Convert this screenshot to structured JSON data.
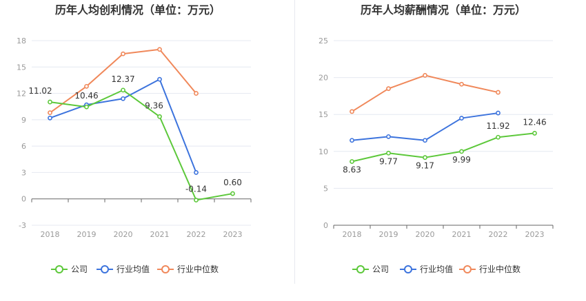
{
  "colors": {
    "company": "#5cc83a",
    "industry_avg": "#3c73dd",
    "industry_median": "#f0885a",
    "grid": "#e4e8f1",
    "axis": "#666666",
    "tick_text": "#999999",
    "title": "#333333"
  },
  "legend": {
    "company": "公司",
    "industry_avg": "行业均值",
    "industry_median": "行业中位数"
  },
  "chart_data": [
    {
      "type": "line",
      "title": "历年人均创利情况（单位：万元）",
      "categories": [
        "2018",
        "2019",
        "2020",
        "2021",
        "2022",
        "2023"
      ],
      "ylim": [
        -3,
        18
      ],
      "yticks": [
        "-3",
        "0",
        "3",
        "6",
        "9",
        "12",
        "15",
        "18"
      ],
      "grid": true,
      "legend_position": "bottom",
      "series": [
        {
          "name": "公司",
          "key": "company",
          "values": [
            11.02,
            10.46,
            12.37,
            9.36,
            -0.14,
            0.6
          ],
          "labels": [
            "11.02",
            "10.46",
            "12.37",
            "9.36",
            "-0.14",
            "0.60"
          ]
        },
        {
          "name": "行业均值",
          "key": "industry_avg",
          "values": [
            9.2,
            10.7,
            11.4,
            13.6,
            3.0,
            null
          ]
        },
        {
          "name": "行业中位数",
          "key": "industry_median",
          "values": [
            9.8,
            12.8,
            16.5,
            17.0,
            12.0,
            null
          ]
        }
      ]
    },
    {
      "type": "line",
      "title": "历年人均薪酬情况（单位：万元）",
      "categories": [
        "2018",
        "2019",
        "2020",
        "2021",
        "2022",
        "2023"
      ],
      "ylim": [
        0,
        25
      ],
      "yticks": [
        "0",
        "5",
        "10",
        "15",
        "20",
        "25"
      ],
      "grid": true,
      "legend_position": "bottom",
      "series": [
        {
          "name": "公司",
          "key": "company",
          "values": [
            8.63,
            9.77,
            9.17,
            9.99,
            11.92,
            12.46
          ],
          "labels": [
            "8.63",
            "9.77",
            "9.17",
            "9.99",
            "11.92",
            "12.46"
          ]
        },
        {
          "name": "行业均值",
          "key": "industry_avg",
          "values": [
            11.5,
            12.0,
            11.5,
            14.5,
            15.2,
            null
          ]
        },
        {
          "name": "行业中位数",
          "key": "industry_median",
          "values": [
            15.4,
            18.5,
            20.3,
            19.1,
            18.0,
            null
          ]
        }
      ]
    }
  ]
}
